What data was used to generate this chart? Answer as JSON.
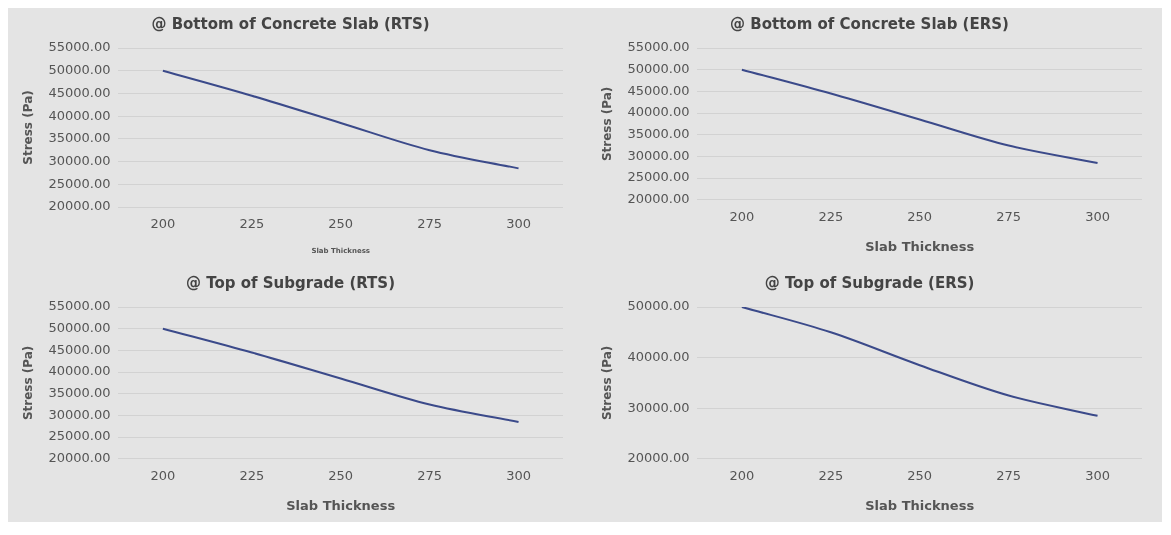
{
  "chart_data": [
    {
      "type": "line",
      "title": "@ Bottom of Concrete Slab (RTS)",
      "xlabel": "Slab Thickness",
      "ylabel": "Stress (Pa)",
      "categories": [
        "200",
        "225",
        "250",
        "275",
        "300"
      ],
      "series": [
        {
          "color": "#3b4a8a",
          "values": [
            50000,
            44500,
            38500,
            32500,
            28500
          ]
        }
      ],
      "ylim": [
        20000,
        55000
      ],
      "yticks": [
        {
          "value": 20000,
          "label": "20000.00"
        },
        {
          "value": 25000,
          "label": "25000.00"
        },
        {
          "value": 30000,
          "label": "30000.00"
        },
        {
          "value": 35000,
          "label": "35000.00"
        },
        {
          "value": 40000,
          "label": "40000.00"
        },
        {
          "value": 45000,
          "label": "45000.00"
        },
        {
          "value": 50000,
          "label": "50000.00"
        },
        {
          "value": 55000,
          "label": "55000.00"
        }
      ],
      "grid": "y",
      "legend": false,
      "marker": "none",
      "line_style": "solid"
    },
    {
      "type": "line",
      "title": "@ Bottom of Concrete Slab (ERS)",
      "xlabel": "Slab Thickness",
      "ylabel": "Stress (Pa)",
      "categories": [
        "200",
        "225",
        "250",
        "275",
        "300"
      ],
      "series": [
        {
          "color": "#3b4a8a",
          "values": [
            50000,
            44500,
            38500,
            32500,
            28500
          ]
        }
      ],
      "ylim": [
        20000,
        55000
      ],
      "yticks": [
        {
          "value": 20000,
          "label": "20000.00"
        },
        {
          "value": 25000,
          "label": "25000.00"
        },
        {
          "value": 30000,
          "label": "30000.00"
        },
        {
          "value": 35000,
          "label": "35000.00"
        },
        {
          "value": 40000,
          "label": "40000.00"
        },
        {
          "value": 45000,
          "label": "45000.00"
        },
        {
          "value": 50000,
          "label": "50000.00"
        },
        {
          "value": 55000,
          "label": "55000.00"
        }
      ],
      "grid": "y",
      "legend": false,
      "marker": "none",
      "line_style": "solid"
    },
    {
      "type": "line",
      "title": "@ Top of Subgrade (RTS)",
      "xlabel": "Slab Thickness",
      "ylabel": "Stress (Pa)",
      "categories": [
        "200",
        "225",
        "250",
        "275",
        "300"
      ],
      "series": [
        {
          "color": "#3b4a8a",
          "values": [
            50000,
            44500,
            38500,
            32500,
            28500
          ]
        }
      ],
      "ylim": [
        20000,
        55000
      ],
      "yticks": [
        {
          "value": 20000,
          "label": "20000.00"
        },
        {
          "value": 25000,
          "label": "25000.00"
        },
        {
          "value": 30000,
          "label": "30000.00"
        },
        {
          "value": 35000,
          "label": "35000.00"
        },
        {
          "value": 40000,
          "label": "40000.00"
        },
        {
          "value": 45000,
          "label": "45000.00"
        },
        {
          "value": 50000,
          "label": "50000.00"
        },
        {
          "value": 55000,
          "label": "55000.00"
        }
      ],
      "grid": "y",
      "legend": false,
      "marker": "none",
      "line_style": "solid"
    },
    {
      "type": "line",
      "title": "@ Top of Subgrade (ERS)",
      "xlabel": "Slab Thickness",
      "ylabel": "Stress (Pa)",
      "categories": [
        "200",
        "225",
        "250",
        "275",
        "300"
      ],
      "series": [
        {
          "color": "#3b4a8a",
          "values": [
            50000,
            45000,
            38500,
            32500,
            28500
          ]
        }
      ],
      "ylim": [
        20000,
        50000
      ],
      "yticks": [
        {
          "value": 20000,
          "label": "20000.00"
        },
        {
          "value": 30000,
          "label": "30000.00"
        },
        {
          "value": 40000,
          "label": "40000.00"
        },
        {
          "value": 50000,
          "label": "50000.00"
        }
      ],
      "grid": "y",
      "legend": false,
      "marker": "none",
      "line_style": "solid"
    }
  ]
}
